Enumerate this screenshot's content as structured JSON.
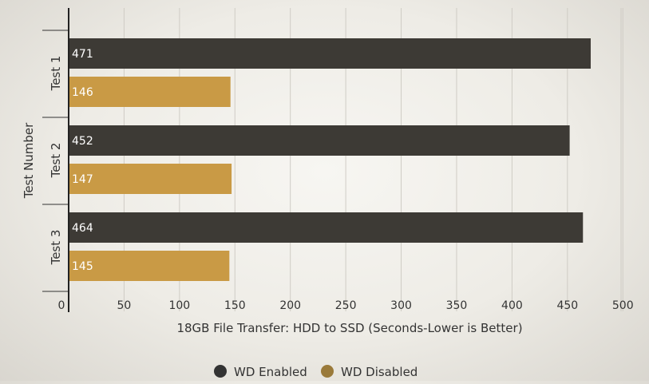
{
  "chart_data": {
    "type": "bar",
    "orientation": "horizontal",
    "categories": [
      "Test 1",
      "Test 2",
      "Test 3"
    ],
    "series": [
      {
        "name": "WD Enabled",
        "values": [
          471,
          452,
          464
        ],
        "color": "#3d3a35"
      },
      {
        "name": "WD Disabled",
        "values": [
          146,
          147,
          145
        ],
        "color": "#c99a45"
      }
    ],
    "xlabel": "18GB File Transfer: HDD to SSD (Seconds-Lower is Better)",
    "ylabel": "Test Number",
    "xlim": [
      0,
      500
    ],
    "xticks": [
      "0",
      "50",
      "100",
      "150",
      "200",
      "250",
      "300",
      "350",
      "400",
      "450",
      "500"
    ],
    "grid": true,
    "legend_position": "bottom",
    "legend_marker_colors": [
      "#333333",
      "#9a7a3a"
    ]
  }
}
